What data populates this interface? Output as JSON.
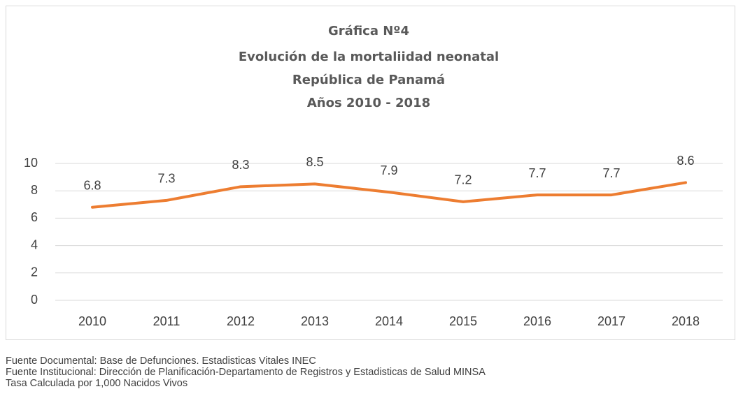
{
  "chart_data": {
    "type": "line",
    "title": [
      "Gráfica Nº4",
      "Evolución de la mortaliidad neonatal",
      "República de Panamá",
      "Años 2010 - 2018"
    ],
    "categories": [
      "2010",
      "2011",
      "2012",
      "2013",
      "2014",
      "2015",
      "2016",
      "2017",
      "2018"
    ],
    "series": [
      {
        "name": "Mortalidad neonatal",
        "color": "#ed7d31",
        "values": [
          6.8,
          7.3,
          8.3,
          8.5,
          7.9,
          7.2,
          7.7,
          7.7,
          8.6
        ]
      }
    ],
    "ylim": [
      0,
      10
    ],
    "yticks": [
      0,
      2,
      4,
      6,
      8,
      10
    ],
    "grid": true,
    "data_labels": true
  },
  "notes": [
    "Fuente Documental: Base de Defunciones. Estadisticas Vitales INEC",
    "Fuente Institucional: Dirección de Planificación-Departamento de Registros y Estadisticas de Salud MINSA",
    "Tasa Calculada por 1,000 Nacidos Vivos"
  ]
}
